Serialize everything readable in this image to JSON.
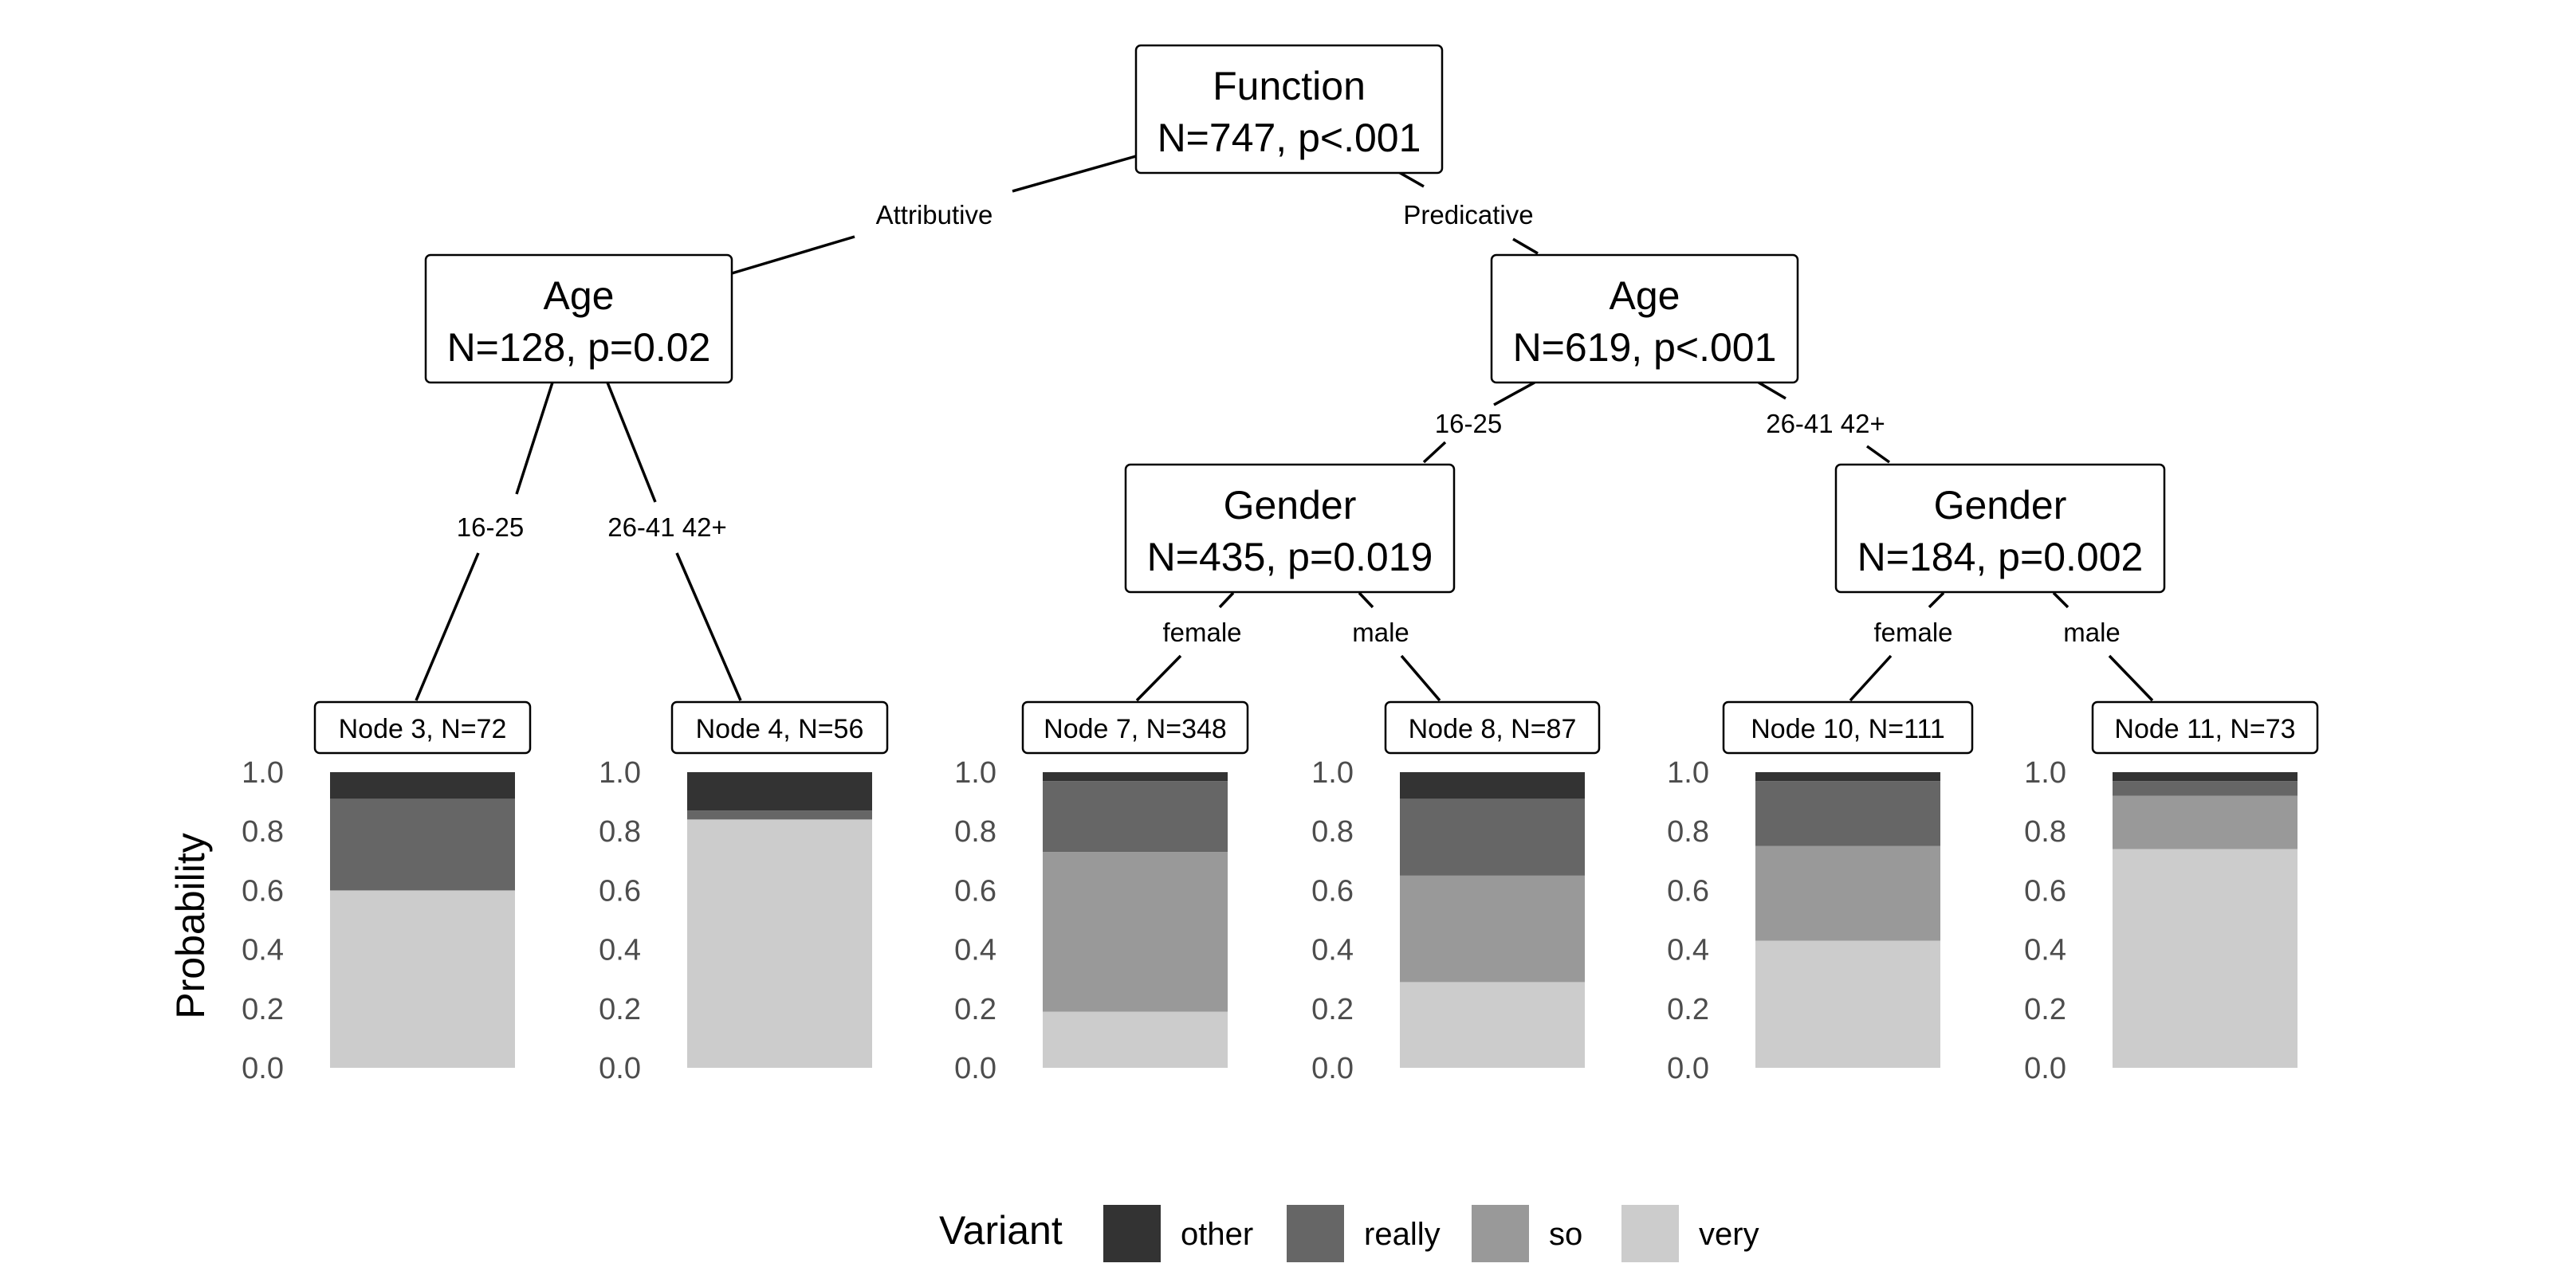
{
  "chart_data": {
    "type": "bar",
    "subtype": "conditional-inference-tree",
    "inner_nodes": [
      {
        "id": "n1",
        "variable": "Function",
        "stats": "N=747, p<.001"
      },
      {
        "id": "n2",
        "variable": "Age",
        "stats": "N=128, p=0.02"
      },
      {
        "id": "n5",
        "variable": "Age",
        "stats": "N=619, p<.001"
      },
      {
        "id": "n6",
        "variable": "Gender",
        "stats": "N=435, p=0.019"
      },
      {
        "id": "n9",
        "variable": "Gender",
        "stats": "N=184, p=0.002"
      }
    ],
    "edges": [
      {
        "from": "n1",
        "to": "n2",
        "label": "Attributive"
      },
      {
        "from": "n1",
        "to": "n5",
        "label": "Predicative"
      },
      {
        "from": "n2",
        "to": "n3",
        "label": "16-25"
      },
      {
        "from": "n2",
        "to": "n4",
        "label": "26-41 42+"
      },
      {
        "from": "n5",
        "to": "n6",
        "label": "16-25"
      },
      {
        "from": "n5",
        "to": "n9",
        "label": "26-41 42+"
      },
      {
        "from": "n6",
        "to": "n7",
        "label": "female"
      },
      {
        "from": "n6",
        "to": "n8",
        "label": "male"
      },
      {
        "from": "n9",
        "to": "n10",
        "label": "female"
      },
      {
        "from": "n9",
        "to": "n11",
        "label": "male"
      }
    ],
    "categories": [
      "Node 3, N=72",
      "Node 4, N=56",
      "Node 7, N=348",
      "Node 8, N=87",
      "Node 10, N=111",
      "Node 11, N=73"
    ],
    "series": [
      {
        "name": "very",
        "color": "#cccccc",
        "values": [
          0.6,
          0.84,
          0.19,
          0.29,
          0.43,
          0.74
        ]
      },
      {
        "name": "so",
        "color": "#999999",
        "values": [
          0.0,
          0.0,
          0.54,
          0.36,
          0.32,
          0.18
        ]
      },
      {
        "name": "really",
        "color": "#666666",
        "values": [
          0.31,
          0.03,
          0.24,
          0.26,
          0.22,
          0.05
        ]
      },
      {
        "name": "other",
        "color": "#333333",
        "values": [
          0.09,
          0.13,
          0.03,
          0.09,
          0.03,
          0.03
        ]
      }
    ],
    "ylabel": "Probability",
    "ylim": [
      0,
      1
    ],
    "yticks": [
      "0.0",
      "0.2",
      "0.4",
      "0.6",
      "0.8",
      "1.0"
    ],
    "legend": {
      "title": "Variant",
      "position": "bottom",
      "entries": [
        {
          "label": "other",
          "color": "#333333"
        },
        {
          "label": "really",
          "color": "#666666"
        },
        {
          "label": "so",
          "color": "#999999"
        },
        {
          "label": "very",
          "color": "#cccccc"
        }
      ]
    }
  }
}
